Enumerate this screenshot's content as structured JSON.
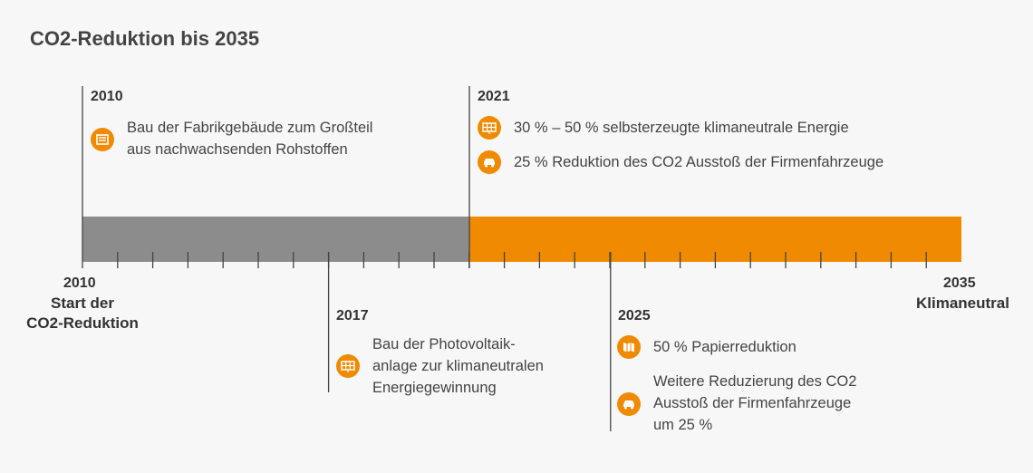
{
  "title": "CO2-Reduktion bis 2035",
  "axis": {
    "start": {
      "year": "2010",
      "label_lines": [
        "Start der",
        "CO2-Reduktion"
      ]
    },
    "end": {
      "year": "2035",
      "label_lines": [
        "Klimaneutral"
      ]
    }
  },
  "milestones": [
    {
      "year": "2010",
      "items": [
        {
          "lines": [
            "Bau der Fabrikgebäude zum Großteil",
            "aus nachwachsenden Rohstoffen"
          ]
        }
      ]
    },
    {
      "year": "2021",
      "items": [
        {
          "lines": [
            "30 % – 50 % selbsterzeugte klimaneutrale Energie"
          ]
        },
        {
          "lines": [
            "25 % Reduktion des CO2 Ausstoß der Firmenfahrzeuge"
          ]
        }
      ]
    },
    {
      "year": "2017",
      "items": [
        {
          "lines": [
            "Bau der Photovoltaik-",
            "anlage zur klimaneutralen",
            "Energiegewinnung"
          ]
        }
      ]
    },
    {
      "year": "2025",
      "items": [
        {
          "lines": [
            "50 % Papierreduktion"
          ]
        },
        {
          "lines": [
            "Weitere Reduzierung des CO2",
            "Ausstoß der Firmenfahrzeuge",
            "um 25 %"
          ]
        }
      ]
    }
  ]
}
